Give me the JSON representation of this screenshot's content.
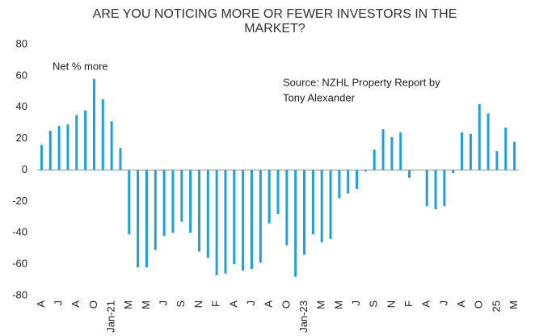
{
  "chart_data": {
    "type": "bar",
    "title": [
      "ARE YOU NOTICING MORE OR FEWER INVESTORS IN THE",
      "MARKET?"
    ],
    "annotations": [
      "Net % more",
      "Source: NZHL  Property Report by",
      "Tony Alexander"
    ],
    "categories": [
      "A",
      null,
      "J",
      null,
      "A",
      null,
      "O",
      null,
      "Jan-21",
      null,
      "M",
      null,
      "M",
      null,
      "J",
      null,
      "S",
      null,
      "N",
      null,
      "F",
      null,
      "A",
      null,
      "J",
      null,
      "A",
      null,
      "O",
      null,
      "Jan-23",
      null,
      "M",
      null,
      "M",
      null,
      "J",
      null,
      "S",
      null,
      "N",
      null,
      "F",
      null,
      "A",
      null,
      "J",
      null,
      "A",
      null,
      "O",
      null,
      "25",
      null,
      "M"
    ],
    "values": [
      16,
      25,
      28,
      29,
      35,
      38,
      58,
      45,
      31,
      14,
      -41,
      -62,
      -62,
      -51,
      -42,
      -40,
      -33,
      -40,
      -52,
      -56,
      -67,
      -66,
      -60,
      -64,
      -63,
      -59,
      -34,
      -28,
      -48,
      -68,
      -54,
      -41,
      -46,
      -44,
      -18,
      -15,
      -12,
      -1,
      13,
      26,
      21,
      24,
      -5,
      null,
      -23,
      -25,
      -23,
      -2,
      24,
      23,
      42,
      36,
      12,
      27,
      18
    ],
    "color": "#1ea0d8",
    "ylim": [
      -80,
      80
    ],
    "yticks": [
      -80,
      -60,
      -40,
      -20,
      0,
      20,
      40,
      60,
      80
    ],
    "grid": false
  }
}
